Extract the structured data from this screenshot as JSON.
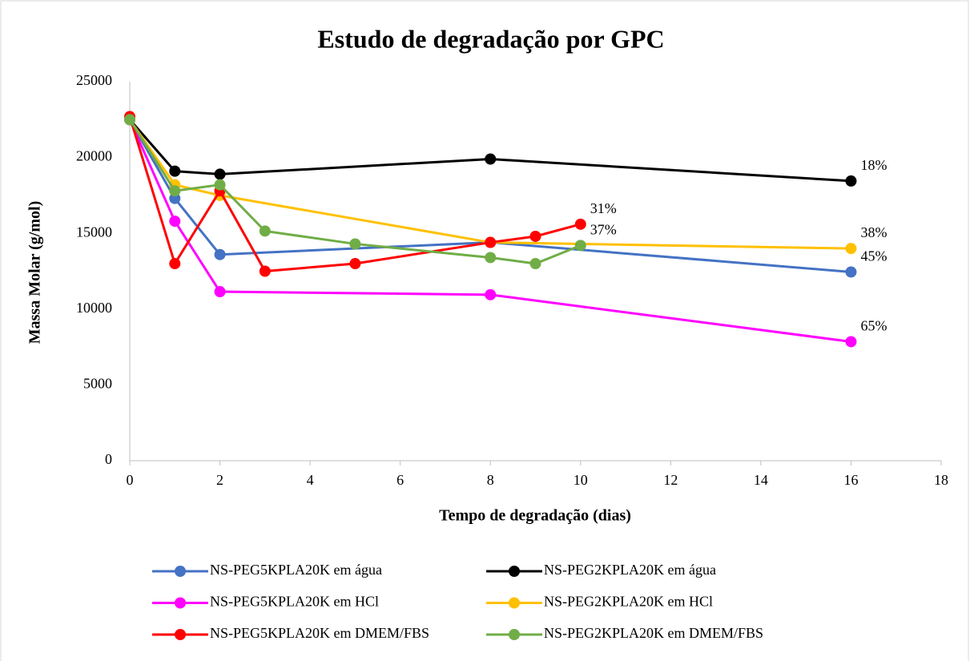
{
  "chart_data": {
    "type": "line",
    "title": "Estudo de degradação por GPC",
    "x_label": "Tempo de degradação (dias)",
    "y_label": "Massa Molar (g/mol)",
    "xlim": [
      0,
      18
    ],
    "xticks": [
      0,
      2,
      4,
      6,
      8,
      10,
      12,
      14,
      16,
      18
    ],
    "ylim": [
      0,
      25000
    ],
    "yticks": [
      0,
      5000,
      10000,
      15000,
      20000,
      25000
    ],
    "grid": false,
    "legend": "bottom",
    "series": [
      {
        "name": "NS-PEG5KPLA20K em água",
        "color": "#4472c4",
        "x": [
          0,
          1,
          2,
          8,
          16
        ],
        "values": [
          22500,
          17300,
          13600,
          14400,
          12450
        ]
      },
      {
        "name": "NS-PEG2KPLA20K em água",
        "color": "#000000",
        "x": [
          0,
          1,
          2,
          8,
          16
        ],
        "values": [
          22500,
          19100,
          18900,
          19900,
          18450
        ]
      },
      {
        "name": "NS-PEG5KPLA20K em HCl",
        "color": "#ff00ff",
        "x": [
          0,
          1,
          2,
          8,
          16
        ],
        "values": [
          22500,
          15800,
          11150,
          10950,
          7850
        ]
      },
      {
        "name": "NS-PEG2KPLA20K em HCl",
        "color": "#ffc000",
        "x": [
          0,
          1,
          2,
          8,
          16
        ],
        "values": [
          22500,
          18200,
          17500,
          14400,
          14000
        ]
      },
      {
        "name": "NS-PEG5KPLA20K em DMEM/FBS",
        "color": "#ff0000",
        "x": [
          0,
          1,
          2,
          3,
          5,
          8,
          9,
          10
        ],
        "values": [
          22700,
          13000,
          17800,
          12500,
          13000,
          14400,
          14800,
          15600
        ]
      },
      {
        "name": "NS-PEG2KPLA20K em DMEM/FBS",
        "color": "#70ad47",
        "x": [
          0,
          1,
          2,
          3,
          5,
          8,
          9,
          10
        ],
        "values": [
          22500,
          17800,
          18200,
          15150,
          14300,
          13400,
          13000,
          14200
        ]
      }
    ],
    "annotations": [
      {
        "text": "18%",
        "series": 1,
        "point": 4
      },
      {
        "text": "31%",
        "series": 4,
        "point": 7
      },
      {
        "text": "38%",
        "series": 3,
        "point": 4
      },
      {
        "text": "45%",
        "series": 0,
        "point": 4
      },
      {
        "text": "37%",
        "series": 5,
        "point": 7
      },
      {
        "text": "65%",
        "series": 2,
        "point": 4
      }
    ]
  }
}
